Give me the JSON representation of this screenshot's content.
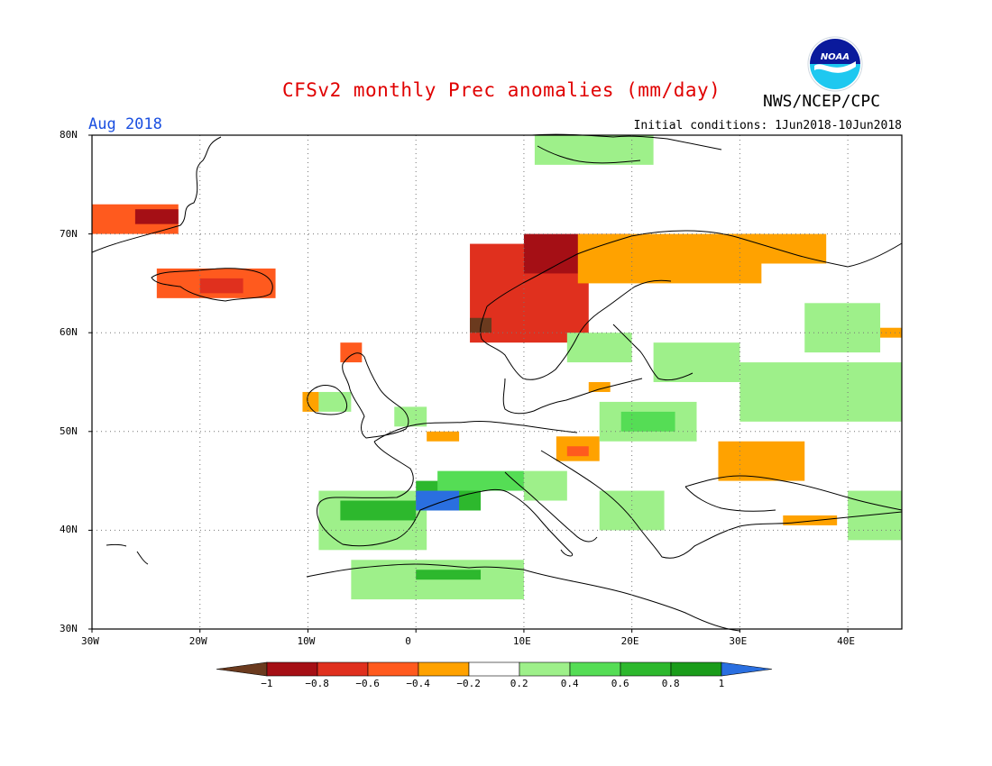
{
  "header": {
    "title": "CFSv2 monthly Prec anomalies (mm/day)",
    "month": "Aug 2018",
    "init": "Initial conditions: 1Jun2018-10Jun2018",
    "agency": "NWS/NCEP/CPC",
    "logo_text": "NOAA"
  },
  "map": {
    "lon_range": [
      -30,
      45
    ],
    "lat_range": [
      30,
      80
    ],
    "lat_ticks": [
      {
        "lat": 80,
        "label": "80N"
      },
      {
        "lat": 70,
        "label": "70N"
      },
      {
        "lat": 60,
        "label": "60N"
      },
      {
        "lat": 50,
        "label": "50N"
      },
      {
        "lat": 40,
        "label": "40N"
      },
      {
        "lat": 30,
        "label": "30N"
      }
    ],
    "lon_ticks": [
      {
        "lon": -30,
        "label": "30W"
      },
      {
        "lon": -20,
        "label": "20W"
      },
      {
        "lon": -10,
        "label": "10W"
      },
      {
        "lon": 0,
        "label": "0"
      },
      {
        "lon": 10,
        "label": "10E"
      },
      {
        "lon": 20,
        "label": "20E"
      },
      {
        "lon": 30,
        "label": "30E"
      },
      {
        "lon": 40,
        "label": "40E"
      }
    ],
    "grid": true,
    "anomaly_regions": [
      {
        "name": "Greenland east coast",
        "lon": [
          -30,
          -22
        ],
        "lat": [
          70,
          73
        ],
        "level": 2
      },
      {
        "name": "Greenland core",
        "lon": [
          -26,
          -22
        ],
        "lat": [
          71,
          72.5
        ],
        "level": 4
      },
      {
        "name": "Iceland",
        "lon": [
          -24,
          -13
        ],
        "lat": [
          63.5,
          66.5
        ],
        "level": 2
      },
      {
        "name": "Iceland core",
        "lon": [
          -20,
          -16
        ],
        "lat": [
          64,
          65.5
        ],
        "level": 3
      },
      {
        "name": "Norway coast",
        "lon": [
          5,
          16
        ],
        "lat": [
          59,
          69
        ],
        "level": 3
      },
      {
        "name": "Norway core",
        "lon": [
          10,
          20
        ],
        "lat": [
          66,
          70
        ],
        "level": 4
      },
      {
        "name": "Norway west",
        "lon": [
          5,
          7
        ],
        "lat": [
          60,
          61.5
        ],
        "level": 5
      },
      {
        "name": "Scandinavia north",
        "lon": [
          15,
          32
        ],
        "lat": [
          65,
          70
        ],
        "level": 1
      },
      {
        "name": "Kola",
        "lon": [
          27,
          38
        ],
        "lat": [
          67,
          70
        ],
        "level": 1
      },
      {
        "name": "Ireland west",
        "lon": [
          -10.5,
          -9
        ],
        "lat": [
          52,
          54
        ],
        "level": 1
      },
      {
        "name": "France north",
        "lon": [
          1,
          4
        ],
        "lat": [
          49,
          50
        ],
        "level": 1
      },
      {
        "name": "Poland north",
        "lon": [
          16,
          18
        ],
        "lat": [
          54,
          55
        ],
        "level": 1
      },
      {
        "name": "Austria",
        "lon": [
          13,
          17
        ],
        "lat": [
          47,
          49.5
        ],
        "level": 1
      },
      {
        "name": "Austria core",
        "lon": [
          14,
          16
        ],
        "lat": [
          47.5,
          48.5
        ],
        "level": 2
      },
      {
        "name": "Ukraine",
        "lon": [
          28,
          36
        ],
        "lat": [
          45,
          49
        ],
        "level": 1
      },
      {
        "name": "Black Sea east",
        "lon": [
          34,
          39
        ],
        "lat": [
          40.5,
          41.5
        ],
        "level": 1
      },
      {
        "name": "Russia east",
        "lon": [
          42,
          45
        ],
        "lat": [
          59.5,
          60.5
        ],
        "level": 1
      },
      {
        "name": "Britain NW",
        "lon": [
          -7,
          -5
        ],
        "lat": [
          57,
          59
        ],
        "level": 2
      }
    ],
    "positive_regions": [
      {
        "name": "Iberia",
        "lon": [
          -9,
          1
        ],
        "lat": [
          38,
          44
        ],
        "level": 1
      },
      {
        "name": "Iberia core",
        "lon": [
          -7,
          0
        ],
        "lat": [
          41,
          43
        ],
        "level": 3
      },
      {
        "name": "Pyrenees",
        "lon": [
          0,
          6
        ],
        "lat": [
          42,
          45
        ],
        "level": 3
      },
      {
        "name": "Pyrenees max",
        "lon": [
          0,
          4
        ],
        "lat": [
          42,
          44
        ],
        "level": 5
      },
      {
        "name": "France south",
        "lon": [
          2,
          10
        ],
        "lat": [
          44,
          46
        ],
        "level": 2
      },
      {
        "name": "Italy north",
        "lon": [
          10,
          14
        ],
        "lat": [
          43,
          46
        ],
        "level": 1
      },
      {
        "name": "Balkans",
        "lon": [
          17,
          23
        ],
        "lat": [
          40,
          44
        ],
        "level": 1
      },
      {
        "name": "North Africa",
        "lon": [
          -6,
          10
        ],
        "lat": [
          33,
          37
        ],
        "level": 1
      },
      {
        "name": "Algeria core",
        "lon": [
          0,
          6
        ],
        "lat": [
          35,
          36
        ],
        "level": 3
      },
      {
        "name": "Central Europe",
        "lon": [
          17,
          26
        ],
        "lat": [
          49,
          53
        ],
        "level": 1
      },
      {
        "name": "Central core",
        "lon": [
          19,
          24
        ],
        "lat": [
          50,
          52
        ],
        "level": 2
      },
      {
        "name": "Baltic",
        "lon": [
          22,
          30
        ],
        "lat": [
          55,
          59
        ],
        "level": 1
      },
      {
        "name": "Russia west",
        "lon": [
          30,
          45
        ],
        "lat": [
          51,
          57
        ],
        "level": 1
      },
      {
        "name": "Sweden south",
        "lon": [
          14,
          20
        ],
        "lat": [
          57,
          60
        ],
        "level": 1
      },
      {
        "name": "Svalbard",
        "lon": [
          11,
          22
        ],
        "lat": [
          77,
          80
        ],
        "level": 1
      },
      {
        "name": "Caucasus",
        "lon": [
          40,
          45
        ],
        "lat": [
          39,
          44
        ],
        "level": 1
      },
      {
        "name": "Ireland",
        "lon": [
          -9,
          -6
        ],
        "lat": [
          52,
          54
        ],
        "level": 1
      },
      {
        "name": "Britain east",
        "lon": [
          -2,
          1
        ],
        "lat": [
          50.5,
          52.5
        ],
        "level": 1
      },
      {
        "name": "Russia NE",
        "lon": [
          36,
          43
        ],
        "lat": [
          58,
          63
        ],
        "level": 1
      }
    ]
  },
  "colorbar": {
    "labels": [
      "−1",
      "−0.8",
      "−0.6",
      "−0.4",
      "−0.2",
      "0.2",
      "0.4",
      "0.6",
      "0.8",
      "1"
    ],
    "negative_colors": [
      "#6b3a1e",
      "#a50f15",
      "#e0301e",
      "#ff5a1e",
      "#ffa200"
    ],
    "neutral_color": "#ffffff",
    "positive_colors": [
      "#9ef08a",
      "#55dd55",
      "#2db82d",
      "#1a9c1a",
      "#2a6fe0"
    ]
  }
}
